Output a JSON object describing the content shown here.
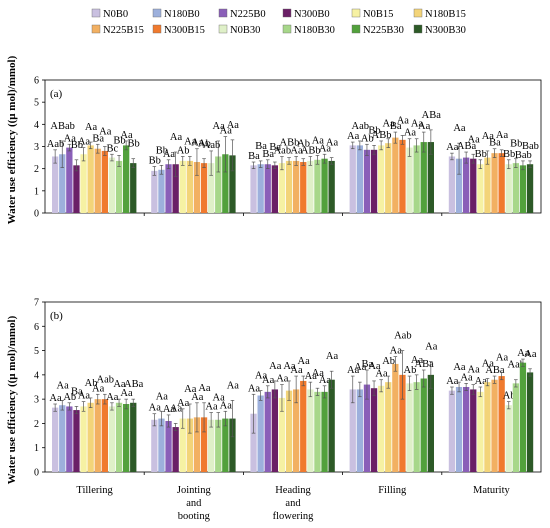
{
  "figure": {
    "panel_labels": [
      "(a)",
      "(b)"
    ],
    "categories": [
      "Tillering",
      "Jointing and booting",
      "Heading and flowering",
      "Filling",
      "Maturity"
    ],
    "category_lines": [
      [
        "Tillering"
      ],
      [
        "Jointing",
        "and",
        "booting"
      ],
      [
        "Heading",
        "and",
        "flowering"
      ],
      [
        "Filling"
      ],
      [
        "Maturity"
      ]
    ],
    "legend": [
      "N0B0",
      "N180B0",
      "N225B0",
      "N300B0",
      "N0B15",
      "N180B15",
      "N225B15",
      "N300B15",
      "N0B30",
      "N180B30",
      "N225B30",
      "N300B30"
    ],
    "colors": [
      "#c9c0e0",
      "#9db0dc",
      "#8a5fb8",
      "#6a1f66",
      "#f6f1a3",
      "#f3d479",
      "#f2b062",
      "#f07a2e",
      "#dff0c8",
      "#a7d78a",
      "#52a13c",
      "#2d5a27"
    ],
    "ylabel_a": "Water use efficiency ((μ mol)/mmol)",
    "ylabel_b": "Water use efficiency ((μ mol)/mmol)"
  },
  "chart_data": [
    {
      "type": "bar",
      "panel": "(a)",
      "categories": [
        "Tillering",
        "Jointing and booting",
        "Heading and flowering",
        "Filling",
        "Maturity"
      ],
      "ylabel": "Water use efficiency ((μ mol)/mmol)",
      "ylim": [
        0,
        6
      ],
      "yticks": [
        0,
        1,
        2,
        3,
        4,
        5,
        6
      ],
      "grid": false,
      "series": [
        {
          "name": "N0B0",
          "values": [
            2.55,
            1.9,
            2.15,
            3.05,
            2.55
          ],
          "errors": [
            0.3,
            0.2,
            0.15,
            0.15,
            0.15
          ],
          "labels": [
            "Aab",
            "Bb",
            "Ba",
            "Aa",
            "Aa"
          ]
        },
        {
          "name": "N180B0",
          "values": [
            2.65,
            1.95,
            2.2,
            3.05,
            2.45
          ],
          "errors": [
            0.6,
            0.2,
            0.15,
            0.2,
            0.7
          ],
          "labels": [
            "ABab",
            "Bb",
            "Ba",
            "Aab",
            "Aa"
          ]
        },
        {
          "name": "N225B0",
          "values": [
            2.95,
            2.2,
            2.2,
            2.85,
            2.5
          ],
          "errors": [
            0.15,
            0.2,
            0.2,
            0.25,
            0.25
          ],
          "labels": [
            "Aa",
            "Aa",
            "Ba",
            "Ab",
            "ABa"
          ]
        },
        {
          "name": "N300B0",
          "values": [
            2.15,
            2.2,
            2.15,
            2.85,
            2.45
          ],
          "errors": [
            0.25,
            0.55,
            0.15,
            0.2,
            0.2
          ],
          "labels": [
            "Bb",
            "Aa",
            "Ba",
            "Bb",
            "Aa"
          ]
        },
        {
          "name": "N0B15",
          "values": [
            2.65,
            2.35,
            2.25,
            3.05,
            2.2
          ],
          "errors": [
            0.3,
            0.2,
            0.3,
            0.2,
            0.2
          ],
          "labels": [
            "Aa",
            "Ab",
            "Aab",
            "ABb",
            "Bb"
          ]
        },
        {
          "name": "N180B15",
          "values": [
            3.05,
            2.35,
            2.35,
            3.15,
            2.5
          ],
          "errors": [
            0.15,
            0.2,
            0.15,
            0.2,
            0.3
          ],
          "labels": [
            "Aa",
            "Aa",
            "ABb",
            "Aa",
            "Aa"
          ]
        },
        {
          "name": "N225B15",
          "values": [
            2.9,
            2.3,
            2.35,
            3.4,
            2.7
          ],
          "errors": [
            0.2,
            0.6,
            0.2,
            0.25,
            0.2
          ],
          "labels": [
            "Ba",
            "Aa",
            "Aa",
            "Ba",
            "Ba"
          ]
        },
        {
          "name": "N300B15",
          "values": [
            2.8,
            2.25,
            2.3,
            3.3,
            2.7
          ],
          "errors": [
            0.2,
            0.2,
            0.15,
            0.2,
            0.15
          ],
          "labels": [
            "Aa",
            "Ab",
            "Ab",
            "Aa",
            "Aa"
          ]
        },
        {
          "name": "N0B30",
          "values": [
            2.5,
            2.25,
            2.35,
            2.95,
            2.2
          ],
          "errors": [
            0.15,
            0.55,
            0.2,
            0.4,
            0.2
          ],
          "labels": [
            "Bc",
            "Aab",
            "ABb",
            "Aa",
            "Bb"
          ]
        },
        {
          "name": "N180B30",
          "values": [
            2.35,
            2.55,
            2.4,
            3.05,
            2.25
          ],
          "errors": [
            0.25,
            0.7,
            0.2,
            0.3,
            0.2
          ],
          "labels": [
            "Bb",
            "Aa",
            "Aa",
            "Aa",
            "Bb"
          ]
        },
        {
          "name": "N225B30",
          "values": [
            3.05,
            2.65,
            2.45,
            3.2,
            2.15
          ],
          "errors": [
            0.2,
            0.8,
            0.2,
            0.45,
            0.2
          ],
          "labels": [
            "Aa",
            "Aa",
            "Aa",
            "Aa",
            "Bab"
          ]
        },
        {
          "name": "N300B30",
          "values": [
            2.25,
            2.6,
            2.35,
            3.2,
            2.2
          ],
          "errors": [
            0.2,
            0.7,
            0.15,
            0.55,
            0.15
          ],
          "labels": [
            "Bb",
            "Aa",
            "Aa",
            "ABa",
            "Bab"
          ]
        }
      ]
    },
    {
      "type": "bar",
      "panel": "(b)",
      "categories": [
        "Tillering",
        "Jointing and booting",
        "Heading and flowering",
        "Filling",
        "Maturity"
      ],
      "ylabel": "Water use efficiency ((μ mol)/mmol)",
      "ylim": [
        0,
        7
      ],
      "yticks": [
        0,
        1,
        2,
        3,
        4,
        5,
        6,
        7
      ],
      "grid": false,
      "series": [
        {
          "name": "N0B0",
          "values": [
            2.65,
            2.15,
            2.4,
            3.4,
            3.35
          ],
          "errors": [
            0.15,
            0.25,
            0.8,
            0.55,
            0.15
          ],
          "labels": [
            "Aa",
            "Aa",
            "Aa",
            "Aa",
            "Aa"
          ]
        },
        {
          "name": "N180B0",
          "values": [
            2.75,
            2.2,
            3.15,
            3.4,
            3.5
          ],
          "errors": [
            0.2,
            0.3,
            0.2,
            0.3,
            0.2
          ],
          "labels": [
            "Aa",
            "Aa",
            "Aa",
            "Aa",
            "Aa"
          ]
        },
        {
          "name": "N225B0",
          "values": [
            2.7,
            2.1,
            3.3,
            3.6,
            3.5
          ],
          "errors": [
            0.15,
            0.25,
            0.25,
            0.6,
            0.15
          ],
          "labels": [
            "Ab",
            "Aa",
            "Aa",
            "Ba",
            "Aa"
          ]
        },
        {
          "name": "N300B0",
          "values": [
            2.55,
            1.85,
            3.4,
            3.45,
            3.4
          ],
          "errors": [
            0.15,
            0.15,
            0.35,
            0.3,
            0.2
          ],
          "labels": [
            "Ba",
            "Aa",
            "Aa",
            "Aa",
            "Aa"
          ]
        },
        {
          "name": "N0B15",
          "values": [
            2.7,
            2.2,
            3.05,
            3.55,
            3.3
          ],
          "errors": [
            0.2,
            0.4,
            0.55,
            0.25,
            0.2
          ],
          "labels": [
            "Aa",
            "Aa",
            "Aa",
            "Aa",
            "Aa"
          ]
        },
        {
          "name": "N180B15",
          "values": [
            2.85,
            2.2,
            3.35,
            3.7,
            3.7
          ],
          "errors": [
            0.2,
            0.6,
            0.4,
            0.25,
            0.15
          ],
          "labels": [
            "Ab",
            "Aa",
            "Aa",
            "Ab",
            "Aa"
          ]
        },
        {
          "name": "N225B15",
          "values": [
            3.0,
            2.25,
            3.4,
            4.45,
            3.8
          ],
          "errors": [
            0.2,
            0.6,
            0.55,
            0.3,
            0.15
          ],
          "labels": [
            "Aa",
            "Aa",
            "Aa",
            "Aa",
            "ABa"
          ]
        },
        {
          "name": "N300B15",
          "values": [
            3.0,
            2.25,
            3.75,
            4.0,
            3.95
          ],
          "errors": [
            0.2,
            0.6,
            0.2,
            1.0,
            0.15
          ],
          "labels": [
            "Aab",
            "Aa",
            "Aa",
            "Aab",
            "Aa"
          ]
        },
        {
          "name": "N0B30",
          "values": [
            2.7,
            2.15,
            3.4,
            3.65,
            2.75
          ],
          "errors": [
            0.15,
            0.3,
            0.3,
            0.3,
            0.15
          ],
          "labels": [
            "Aa",
            "Aa",
            "Aa",
            "Ab",
            "Ab"
          ]
        },
        {
          "name": "N180B30",
          "values": [
            2.85,
            2.15,
            3.3,
            3.7,
            3.65
          ],
          "errors": [
            0.15,
            0.3,
            0.15,
            0.3,
            0.15
          ],
          "labels": [
            "Aa",
            "Aa",
            "Aa",
            "Aa",
            "Aab"
          ]
        },
        {
          "name": "N225B30",
          "values": [
            2.8,
            2.2,
            3.3,
            3.85,
            4.5
          ],
          "errors": [
            0.2,
            0.3,
            0.25,
            0.35,
            0.15
          ],
          "labels": [
            "Aa",
            "Aa",
            "Aa",
            "ABa",
            "Aa"
          ]
        },
        {
          "name": "N300B30",
          "values": [
            2.85,
            2.2,
            3.8,
            4.0,
            4.1
          ],
          "errors": [
            0.15,
            0.75,
            0.35,
            0.55,
            0.15
          ],
          "labels": [
            "ABa",
            "Aa",
            "Aa",
            "Aa",
            "Aa"
          ]
        }
      ]
    }
  ]
}
